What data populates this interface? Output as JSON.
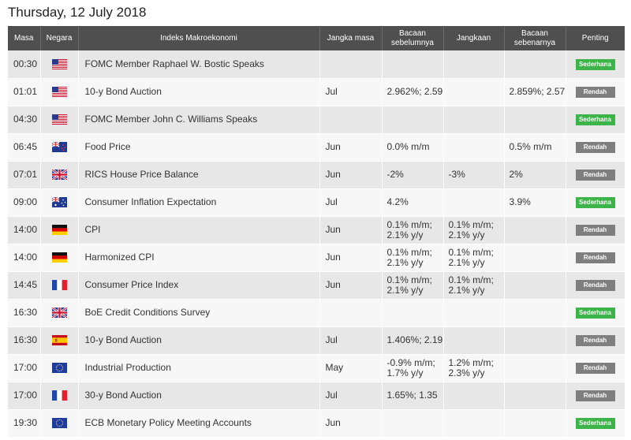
{
  "page": {
    "title": "Thursday, 12 July 2018"
  },
  "table": {
    "headers": {
      "time": "Masa",
      "country": "Negara",
      "index": "Indeks Makroekonomi",
      "period": "Jangka masa",
      "previous": "Bacaan sebelumnya",
      "forecast": "Jangkaan",
      "actual": "Bacaan sebenarnya",
      "importance": "Penting"
    },
    "rows": [
      {
        "time": "00:30",
        "flag": "us-flag-icon",
        "index": "FOMC Member Raphael W. Bostic Speaks",
        "period": "",
        "previous": "",
        "forecast": "",
        "actual": "",
        "importance": "Sederhana"
      },
      {
        "time": "01:01",
        "flag": "us-flag-icon",
        "index": "10-y Bond Auction",
        "period": "Jul",
        "previous": "2.962%; 2.59",
        "forecast": "",
        "actual": "2.859%; 2.57",
        "importance": "Rendah"
      },
      {
        "time": "04:30",
        "flag": "us-flag-icon",
        "index": "FOMC Member John C. Williams Speaks",
        "period": "",
        "previous": "",
        "forecast": "",
        "actual": "",
        "importance": "Sederhana"
      },
      {
        "time": "06:45",
        "flag": "nz-flag-icon",
        "index": "Food Price",
        "period": "Jun",
        "previous": "0.0% m/m",
        "forecast": "",
        "actual": "0.5% m/m",
        "importance": "Rendah"
      },
      {
        "time": "07:01",
        "flag": "uk-flag-icon",
        "index": "RICS House Price Balance",
        "period": "Jun",
        "previous": "-2%",
        "forecast": "-3%",
        "actual": "2%",
        "importance": "Rendah"
      },
      {
        "time": "09:00",
        "flag": "au-flag-icon",
        "index": "Consumer Inflation Expectation",
        "period": "Jul",
        "previous": "4.2%",
        "forecast": "",
        "actual": "3.9%",
        "importance": "Sederhana"
      },
      {
        "time": "14:00",
        "flag": "de-flag-icon",
        "index": "CPI",
        "period": "Jun",
        "previous": "0.1% m/m; 2.1% y/y",
        "forecast": "0.1% m/m; 2.1% y/y",
        "actual": "",
        "importance": "Rendah"
      },
      {
        "time": "14:00",
        "flag": "de-flag-icon",
        "index": "Harmonized CPI",
        "period": "Jun",
        "previous": "0.1% m/m; 2.1% y/y",
        "forecast": "0.1% m/m; 2.1% y/y",
        "actual": "",
        "importance": "Rendah"
      },
      {
        "time": "14:45",
        "flag": "fr-flag-icon",
        "index": "Consumer Price Index",
        "period": "Jun",
        "previous": "0.1% m/m; 2.1% y/y",
        "forecast": "0.1% m/m; 2.1% y/y",
        "actual": "",
        "importance": "Rendah"
      },
      {
        "time": "16:30",
        "flag": "uk-flag-icon",
        "index": "BoE Credit Conditions Survey",
        "period": "",
        "previous": "",
        "forecast": "",
        "actual": "",
        "importance": "Sederhana"
      },
      {
        "time": "16:30",
        "flag": "es-flag-icon",
        "index": "10-y Bond Auction",
        "period": "Jul",
        "previous": "1.406%; 2.19",
        "forecast": "",
        "actual": "",
        "importance": "Rendah"
      },
      {
        "time": "17:00",
        "flag": "eu-flag-icon",
        "index": "Industrial Production",
        "period": "May",
        "previous": "-0.9% m/m; 1.7% y/y",
        "forecast": "1.2% m/m; 2.3% y/y",
        "actual": "",
        "importance": "Rendah"
      },
      {
        "time": "17:00",
        "flag": "fr-flag-icon",
        "index": "30-y Bond Auction",
        "period": "Jul",
        "previous": "1.65%; 1.35",
        "forecast": "",
        "actual": "",
        "importance": "Rendah"
      },
      {
        "time": "19:30",
        "flag": "eu-flag-icon",
        "index": "ECB Monetary Policy Meeting Accounts",
        "period": "Jun",
        "previous": "",
        "forecast": "",
        "actual": "",
        "importance": "Sederhana"
      }
    ]
  },
  "colors": {
    "header_bg": "#4f4f4f",
    "row_odd": "#e7e7e7",
    "row_even": "#f7f7f7",
    "badge_moderate": "#3db449",
    "badge_low": "#7f7f7f",
    "actual_positive": "#2e9d2e"
  }
}
